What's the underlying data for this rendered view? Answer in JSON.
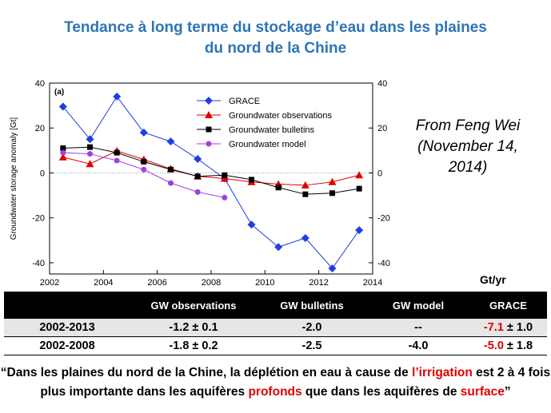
{
  "title": {
    "line1": "Tendance à long terme du stockage d’eau dans les plaines",
    "line2": "du nord de la Chine"
  },
  "credit": {
    "line1": "From Feng Wei",
    "line2": "(November 14,",
    "line3": "2014)"
  },
  "colors": {
    "title": "#2e75b6",
    "grace": "#1f3fe0",
    "obs": "#e00000",
    "bulletins": "#000000",
    "model": "#a040e0",
    "highlight_red": "#e00000"
  },
  "chart_data": {
    "type": "line",
    "panel_label": "(a)",
    "ylabel": "Groundwater storage anomaly [Gt]",
    "xlabel": "",
    "xlim": [
      2002,
      2014
    ],
    "ylim": [
      -45,
      40
    ],
    "x_ticks": [
      2002,
      2004,
      2006,
      2008,
      2010,
      2012,
      2014
    ],
    "y_ticks": [
      -40,
      -20,
      0,
      20,
      40
    ],
    "legend_position": "top-right",
    "series": [
      {
        "name": "GRACE",
        "marker": "diamond",
        "color": "#1f3fe0",
        "x": [
          2002.5,
          2003.5,
          2004.5,
          2005.5,
          2006.5,
          2007.5,
          2008.5,
          2009.5,
          2010.5,
          2011.5,
          2012.5,
          2013.5
        ],
        "y": [
          29.5,
          15,
          34,
          18,
          14,
          6.2,
          -2.5,
          -23,
          -33,
          -29,
          -42.5,
          -25.5
        ]
      },
      {
        "name": "Groundwater observations",
        "marker": "triangle",
        "color": "#e00000",
        "x": [
          2002.5,
          2003.5,
          2004.5,
          2005.5,
          2006.5,
          2007.5,
          2008.5,
          2009.5,
          2010.5,
          2011.5,
          2012.5,
          2013.5
        ],
        "y": [
          7,
          4,
          9.8,
          6,
          1.8,
          -1.5,
          -2.5,
          -4,
          -5,
          -5.5,
          -4,
          -1
        ]
      },
      {
        "name": "Groundwater bulletins",
        "marker": "square",
        "color": "#000000",
        "x": [
          2002.5,
          2003.5,
          2004.5,
          2005.5,
          2006.5,
          2007.5,
          2008.5,
          2009.5,
          2010.5,
          2011.5,
          2012.5,
          2013.5
        ],
        "y": [
          11,
          11.5,
          9,
          5,
          1.5,
          -1.5,
          -1,
          -3,
          -6.5,
          -9.5,
          -9,
          -7
        ]
      },
      {
        "name": "Groundwater model",
        "marker": "circle",
        "color": "#a040e0",
        "x": [
          2002.5,
          2003.5,
          2004.5,
          2005.5,
          2006.5,
          2007.5,
          2008.5
        ],
        "y": [
          9,
          8.5,
          5.5,
          1.5,
          -4.5,
          -8.5,
          -11
        ]
      }
    ]
  },
  "table": {
    "unit": "Gt/yr",
    "headers": [
      "",
      "GW observations",
      "GW bulletins",
      "GW model",
      "GRACE"
    ],
    "rows": [
      {
        "period": "2002-2013",
        "gw_obs": "-1.2 ± 0.1",
        "gw_bulletins": "-2.0",
        "gw_model": "--",
        "grace_value": "-7.1",
        "grace_err": " ± 1.0"
      },
      {
        "period": "2002-2008",
        "gw_obs": "-1.8 ± 0.2",
        "gw_bulletins": "-2.5",
        "gw_model": "-4.0",
        "grace_value": "-5.0",
        "grace_err": " ± 1.8"
      }
    ]
  },
  "quote": {
    "part1": "“Dans les plaines du nord de la Chine, la déplétion en eau à cause de ",
    "highlight1": "l’irrigation",
    "part2": " est 2 à 4 fois plus importante dans les aquifères ",
    "highlight2": "profonds",
    "part3": " que dans les aquifères de ",
    "highlight3": "surface",
    "part4": "”"
  }
}
